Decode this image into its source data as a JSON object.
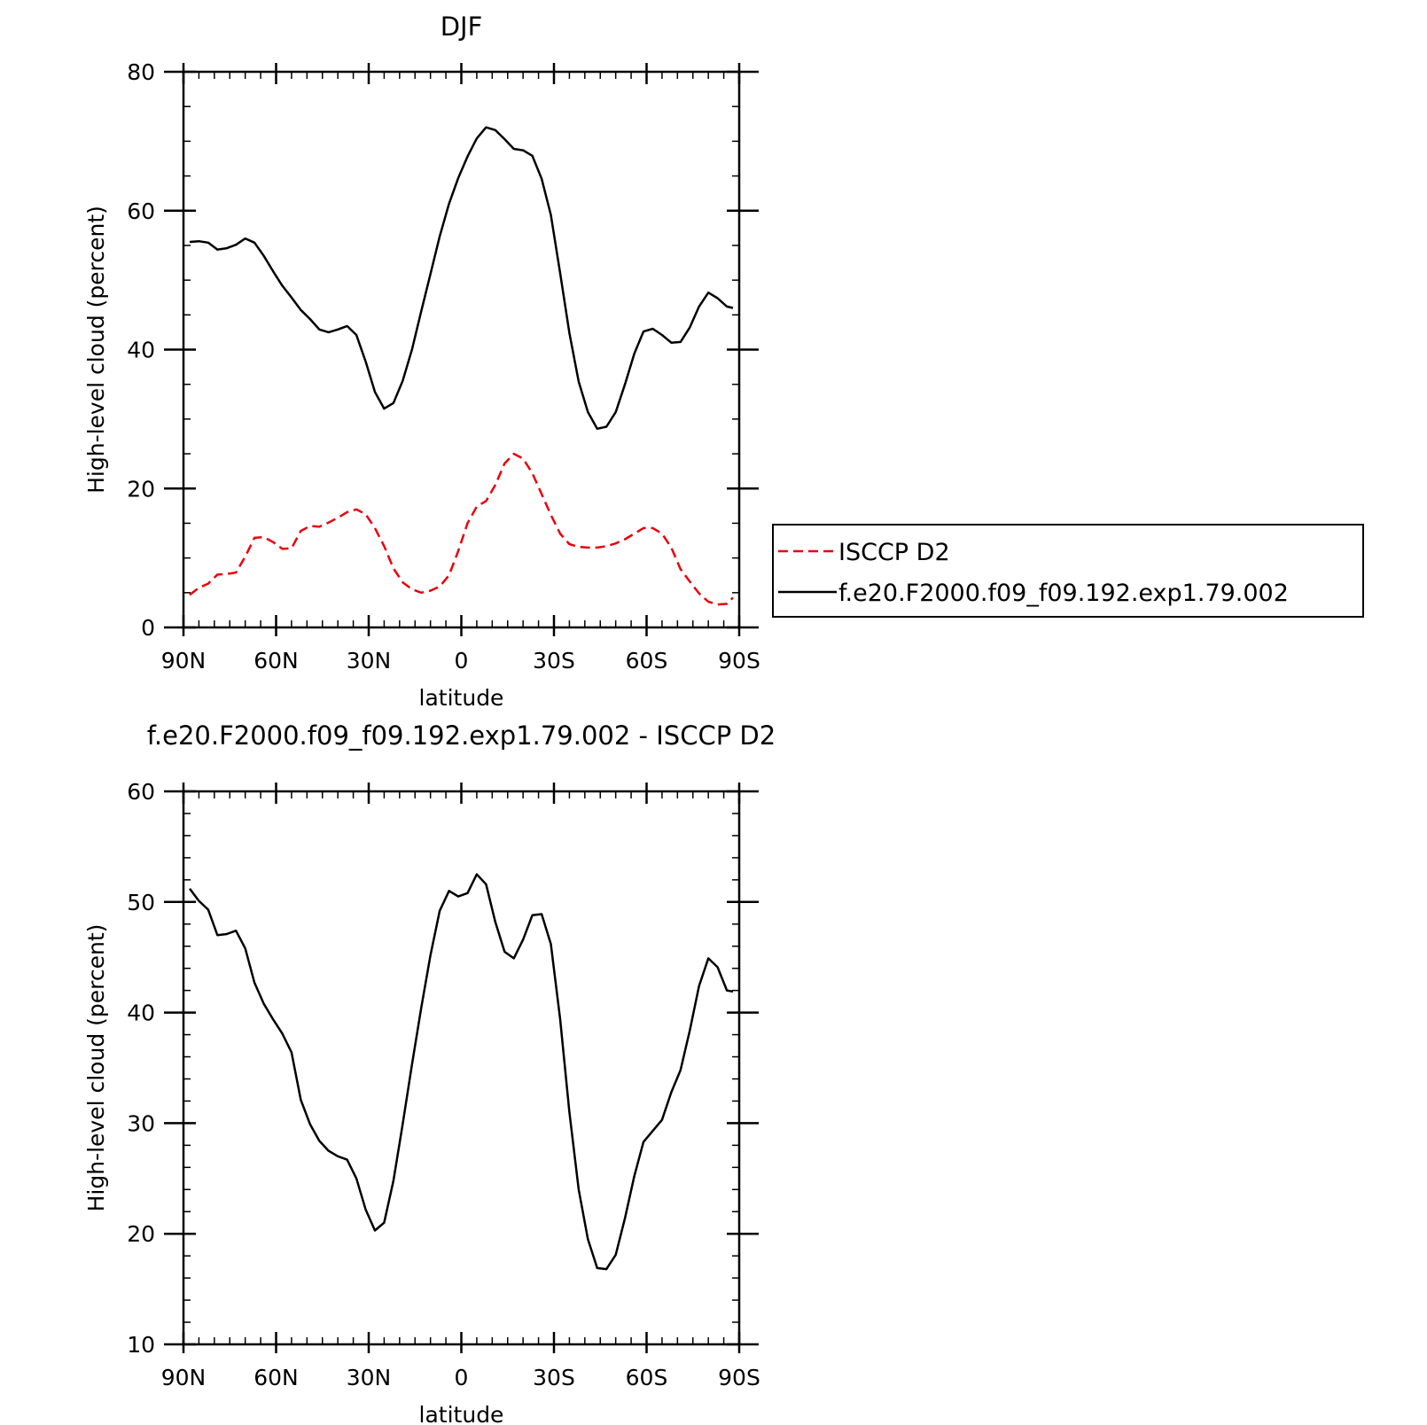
{
  "chart_data": [
    {
      "type": "line",
      "title": "DJF",
      "xlabel": "latitude",
      "ylabel": "High-level cloud (percent)",
      "xlim": [
        90,
        -90
      ],
      "ylim": [
        0,
        80
      ],
      "x_ticks": [
        {
          "value": 90,
          "label": "90N"
        },
        {
          "value": 60,
          "label": "60N"
        },
        {
          "value": 30,
          "label": "30N"
        },
        {
          "value": 0,
          "label": "0"
        },
        {
          "value": -30,
          "label": "30S"
        },
        {
          "value": -60,
          "label": "60S"
        },
        {
          "value": -90,
          "label": "90S"
        }
      ],
      "y_ticks": [
        0,
        20,
        40,
        60,
        80
      ],
      "legend": {
        "position": "right",
        "entries": [
          "ISCCP D2",
          "f.e20.F2000.f09_f09.192.exp1.79.002"
        ]
      },
      "series": [
        {
          "name": "ISCCP D2",
          "color": "#e8000b",
          "dash": "dashed",
          "x": [
            88,
            85,
            82,
            79,
            76,
            73,
            70,
            67,
            64,
            61,
            58,
            55,
            52,
            49,
            46,
            43,
            40,
            37,
            34,
            31,
            28,
            25,
            22,
            19,
            16,
            13,
            10,
            7,
            4,
            1,
            -2,
            -5,
            -8,
            -11,
            -14,
            -17,
            -20,
            -23,
            -26,
            -29,
            -32,
            -35,
            -38,
            -41,
            -44,
            -47,
            -50,
            -53,
            -56,
            -59,
            -62,
            -65,
            -68,
            -71,
            -74,
            -77,
            -80,
            -83,
            -86,
            -88
          ],
          "values": [
            4.7,
            5.7,
            6.3,
            7.6,
            7.7,
            7.9,
            10.2,
            12.9,
            13.0,
            12.3,
            11.3,
            11.4,
            13.9,
            14.6,
            14.5,
            15.1,
            15.8,
            16.6,
            17.0,
            16.3,
            14.3,
            11.7,
            8.5,
            6.5,
            5.5,
            5.0,
            5.3,
            5.9,
            7.5,
            11.0,
            15.0,
            17.4,
            18.2,
            20.5,
            23.6,
            25.0,
            24.3,
            22.2,
            19.2,
            16.2,
            13.5,
            12.0,
            11.6,
            11.5,
            11.5,
            11.7,
            12.1,
            12.7,
            13.5,
            14.3,
            14.3,
            13.5,
            11.5,
            8.4,
            6.6,
            4.9,
            3.7,
            3.3,
            3.4,
            4.3
          ]
        },
        {
          "name": "f.e20.F2000.f09_f09.192.exp1.79.002",
          "color": "#000000",
          "dash": "solid",
          "x": [
            88,
            85,
            82,
            79,
            76,
            73,
            70,
            67,
            64,
            61,
            58,
            55,
            52,
            49,
            46,
            43,
            40,
            37,
            34,
            31,
            28,
            25,
            22,
            19,
            16,
            13,
            10,
            7,
            4,
            1,
            -2,
            -5,
            -8,
            -11,
            -14,
            -17,
            -20,
            -23,
            -26,
            -29,
            -32,
            -35,
            -38,
            -41,
            -44,
            -47,
            -50,
            -53,
            -56,
            -59,
            -62,
            -65,
            -68,
            -71,
            -74,
            -77,
            -80,
            -83,
            -86,
            -88
          ],
          "values": [
            55.5,
            55.6,
            55.4,
            54.4,
            54.6,
            55.1,
            56.0,
            55.4,
            53.5,
            51.3,
            49.2,
            47.5,
            45.7,
            44.4,
            42.9,
            42.5,
            42.9,
            43.4,
            42.1,
            38.3,
            33.9,
            31.5,
            32.3,
            35.5,
            40.0,
            45.5,
            50.9,
            56.3,
            61.0,
            64.7,
            67.8,
            70.4,
            72.0,
            71.6,
            70.3,
            68.9,
            68.7,
            67.9,
            64.6,
            59.4,
            51.0,
            42.4,
            35.4,
            31.0,
            28.6,
            28.9,
            31.0,
            35.0,
            39.4,
            42.6,
            43.0,
            42.1,
            41.0,
            41.1,
            43.2,
            46.2,
            48.2,
            47.4,
            46.2,
            46.0
          ]
        }
      ]
    },
    {
      "type": "line",
      "title": "f.e20.F2000.f09_f09.192.exp1.79.002 - ISCCP D2",
      "xlabel": "latitude",
      "ylabel": "High-level cloud (percent)",
      "xlim": [
        90,
        -90
      ],
      "ylim": [
        10,
        60
      ],
      "x_ticks": [
        {
          "value": 90,
          "label": "90N"
        },
        {
          "value": 60,
          "label": "60N"
        },
        {
          "value": 30,
          "label": "30N"
        },
        {
          "value": 0,
          "label": "0"
        },
        {
          "value": -30,
          "label": "30S"
        },
        {
          "value": -60,
          "label": "60S"
        },
        {
          "value": -90,
          "label": "90S"
        }
      ],
      "y_ticks": [
        10,
        20,
        30,
        40,
        50,
        60
      ],
      "series": [
        {
          "color": "#000000",
          "dash": "solid",
          "x": [
            88,
            85,
            82,
            79,
            76,
            73,
            70,
            67,
            64,
            61,
            58,
            55,
            52,
            49,
            46,
            43,
            40,
            37,
            34,
            31,
            28,
            25,
            22,
            19,
            16,
            13,
            10,
            7,
            4,
            1,
            -2,
            -5,
            -8,
            -11,
            -14,
            -17,
            -20,
            -23,
            -26,
            -29,
            -32,
            -35,
            -38,
            -41,
            -44,
            -47,
            -50,
            -53,
            -56,
            -59,
            -62,
            -65,
            -68,
            -71,
            -74,
            -77,
            -80,
            -83,
            -86,
            -88
          ],
          "values": [
            51.2,
            50.1,
            49.3,
            47.0,
            47.1,
            47.4,
            45.8,
            42.7,
            40.8,
            39.4,
            38.1,
            36.4,
            32.1,
            29.9,
            28.4,
            27.5,
            27.0,
            26.7,
            25.0,
            22.2,
            20.3,
            21.0,
            24.8,
            29.9,
            35.3,
            40.4,
            45.2,
            49.2,
            51.0,
            50.5,
            50.8,
            52.5,
            51.6,
            48.2,
            45.5,
            44.9,
            46.6,
            48.8,
            48.9,
            46.2,
            39.4,
            31.0,
            24.0,
            19.5,
            16.9,
            16.8,
            18.1,
            21.4,
            25.2,
            28.3,
            29.3,
            30.3,
            32.8,
            34.8,
            38.4,
            42.4,
            44.9,
            44.1,
            42.0,
            41.9
          ]
        }
      ]
    }
  ]
}
